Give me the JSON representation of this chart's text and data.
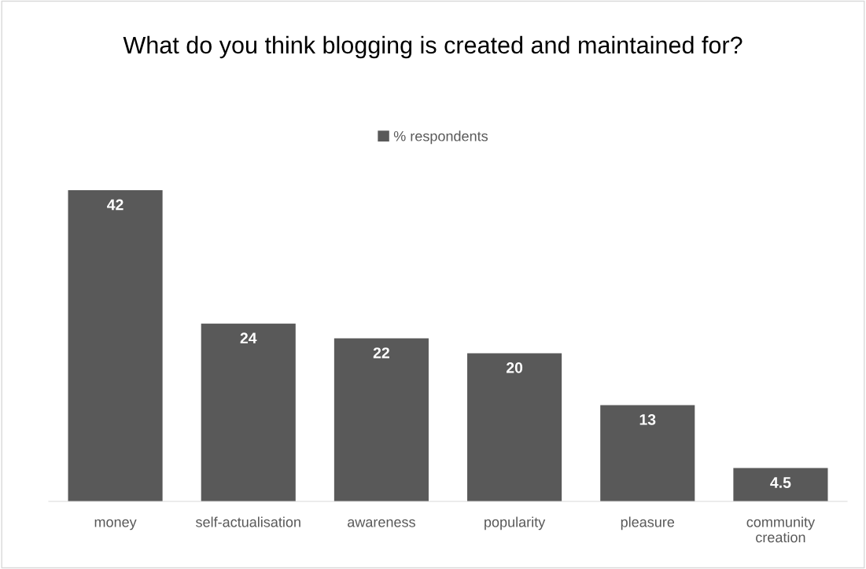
{
  "chart_data": {
    "type": "bar",
    "title": "What do you think blogging is created and maintained for?",
    "categories": [
      "money",
      "self-actualisation",
      "awareness",
      "popularity",
      "pleasure",
      "community\ncreation"
    ],
    "series": [
      {
        "name": "% respondents",
        "color": "#595959",
        "values": [
          42,
          24,
          22,
          20,
          13,
          4.5
        ]
      }
    ],
    "data_labels": true,
    "legend": "top",
    "grid": false
  }
}
